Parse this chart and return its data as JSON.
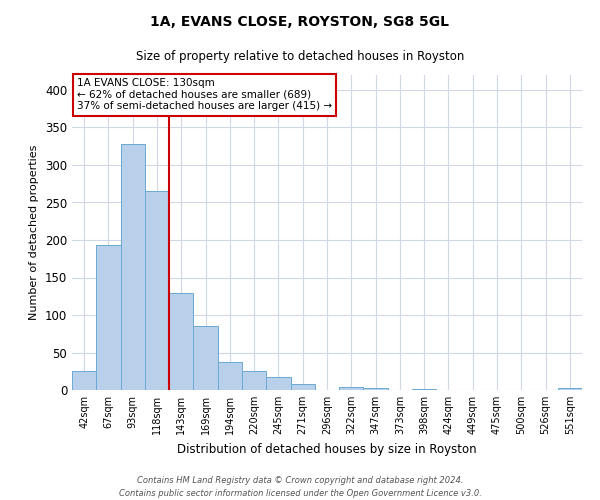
{
  "title": "1A, EVANS CLOSE, ROYSTON, SG8 5GL",
  "subtitle": "Size of property relative to detached houses in Royston",
  "xlabel": "Distribution of detached houses by size in Royston",
  "ylabel": "Number of detached properties",
  "bar_labels": [
    "42sqm",
    "67sqm",
    "93sqm",
    "118sqm",
    "143sqm",
    "169sqm",
    "194sqm",
    "220sqm",
    "245sqm",
    "271sqm",
    "296sqm",
    "322sqm",
    "347sqm",
    "373sqm",
    "398sqm",
    "424sqm",
    "449sqm",
    "475sqm",
    "500sqm",
    "526sqm",
    "551sqm"
  ],
  "bar_values": [
    25,
    193,
    328,
    265,
    130,
    85,
    37,
    26,
    17,
    8,
    0,
    4,
    3,
    0,
    2,
    0,
    0,
    0,
    0,
    0,
    3
  ],
  "bar_color": "#b8d0ea",
  "bar_edge_color": "#6aaad4",
  "ylim": [
    0,
    420
  ],
  "yticks": [
    0,
    50,
    100,
    150,
    200,
    250,
    300,
    350,
    400
  ],
  "vline_x": 3.48,
  "vline_color": "#cc0000",
  "annotation_title": "1A EVANS CLOSE: 130sqm",
  "annotation_line1": "← 62% of detached houses are smaller (689)",
  "annotation_line2": "37% of semi-detached houses are larger (415) →",
  "annotation_box_color": "#ffffff",
  "annotation_box_edge": "#cc0000",
  "footer1": "Contains HM Land Registry data © Crown copyright and database right 2024.",
  "footer2": "Contains public sector information licensed under the Open Government Licence v3.0.",
  "grid_color": "#d0d8e8",
  "background_color": "#ffffff"
}
